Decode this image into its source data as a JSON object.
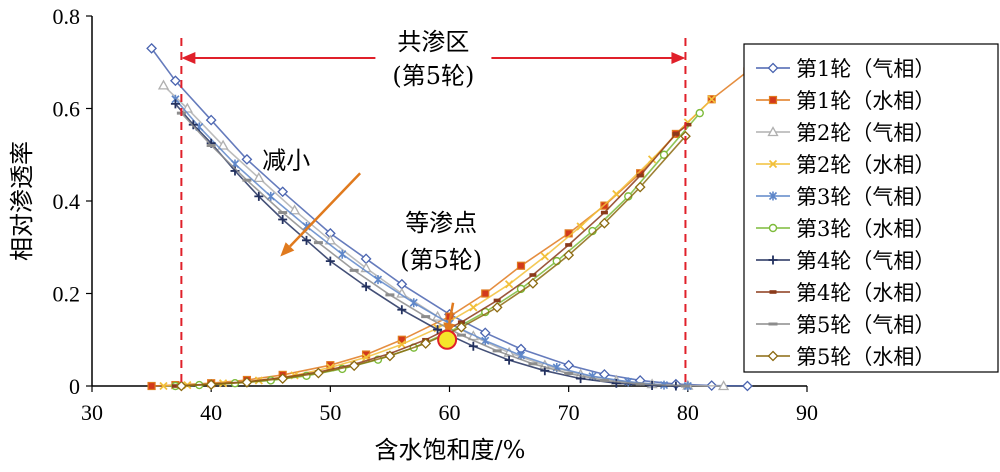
{
  "chart_data": {
    "type": "scatter",
    "xlabel": "含水饱和度/%",
    "ylabel": "相对渗透率",
    "xlim": [
      30,
      90
    ],
    "ylim": [
      0,
      0.8
    ],
    "xticks": [
      "30",
      "40",
      "50",
      "60",
      "70",
      "80",
      "90"
    ],
    "yticks": [
      "0",
      "0.2",
      "0.4",
      "0.6",
      "0.8"
    ],
    "grid": false,
    "legend_position": "right",
    "annotations": {
      "co_seepage_line1": "共渗区",
      "co_seepage_line2": "(第5轮)",
      "decrease": "减小",
      "equal_point_line1": "等渗点",
      "equal_point_line2": "(第5轮)"
    },
    "co_seepage_bounds": [
      37.5,
      79.8
    ],
    "equal_point": {
      "x": 59.8,
      "y": 0.1
    },
    "decrease_arrow": {
      "from": [
        52.5,
        0.46
      ],
      "to": [
        45.8,
        0.28
      ]
    },
    "equal_arrow": {
      "from": [
        60.3,
        0.18
      ],
      "to": [
        59.8,
        0.11
      ]
    },
    "series": [
      {
        "name": "第1轮（气相）",
        "color": "#4a64b0",
        "marker": "diamond",
        "x": [
          35,
          37,
          40,
          43,
          46,
          50,
          53,
          56,
          60,
          63,
          66,
          70,
          73,
          76,
          79,
          82,
          85
        ],
        "y": [
          0.73,
          0.66,
          0.575,
          0.49,
          0.42,
          0.33,
          0.275,
          0.22,
          0.155,
          0.115,
          0.08,
          0.045,
          0.025,
          0.012,
          0.004,
          0.001,
          0.0
        ]
      },
      {
        "name": "第1轮（水相）",
        "color": "#e07a1e",
        "marker": "square",
        "x": [
          35,
          37,
          40,
          43,
          46,
          50,
          53,
          56,
          60,
          63,
          66,
          70,
          73,
          76,
          79,
          82,
          85
        ],
        "y": [
          0.0,
          0.002,
          0.006,
          0.013,
          0.024,
          0.045,
          0.068,
          0.1,
          0.15,
          0.2,
          0.26,
          0.33,
          0.39,
          0.46,
          0.545,
          0.62,
          0.68
        ]
      },
      {
        "name": "第2轮（气相）",
        "color": "#b0b0b0",
        "marker": "triangle",
        "x": [
          36,
          38,
          41,
          44,
          47,
          50,
          53,
          56,
          59,
          62,
          65,
          68,
          71,
          74,
          77,
          80,
          83
        ],
        "y": [
          0.65,
          0.6,
          0.52,
          0.45,
          0.38,
          0.315,
          0.255,
          0.2,
          0.15,
          0.108,
          0.072,
          0.045,
          0.025,
          0.012,
          0.004,
          0.001,
          0.0
        ]
      },
      {
        "name": "第2轮（水相）",
        "color": "#f2c03a",
        "marker": "x",
        "x": [
          36,
          38,
          41,
          44,
          47,
          50,
          53,
          56,
          59,
          62,
          65,
          68,
          71,
          74,
          77,
          80,
          82
        ],
        "y": [
          0.0,
          0.002,
          0.006,
          0.012,
          0.023,
          0.04,
          0.062,
          0.09,
          0.125,
          0.17,
          0.22,
          0.28,
          0.345,
          0.415,
          0.49,
          0.57,
          0.62
        ]
      },
      {
        "name": "第3轮（气相）",
        "color": "#5f87c9",
        "marker": "star",
        "x": [
          37,
          39,
          42,
          45,
          48,
          51,
          54,
          57,
          60,
          63,
          66,
          69,
          72,
          75,
          78,
          80
        ],
        "y": [
          0.62,
          0.56,
          0.48,
          0.41,
          0.345,
          0.285,
          0.23,
          0.18,
          0.135,
          0.098,
          0.066,
          0.04,
          0.021,
          0.009,
          0.002,
          0.0
        ]
      },
      {
        "name": "第3轮（水相）",
        "color": "#7dbb3a",
        "marker": "circle",
        "x": [
          37,
          39,
          42,
          45,
          48,
          51,
          54,
          57,
          60,
          63,
          66,
          69,
          72,
          75,
          78,
          81
        ],
        "y": [
          0.0,
          0.002,
          0.006,
          0.012,
          0.022,
          0.037,
          0.057,
          0.083,
          0.117,
          0.16,
          0.21,
          0.27,
          0.335,
          0.41,
          0.5,
          0.59
        ]
      },
      {
        "name": "第4轮（气相）",
        "color": "#23315f",
        "marker": "plus",
        "x": [
          37,
          38.5,
          40,
          42,
          44,
          46,
          48,
          50,
          53,
          56,
          59,
          62,
          65,
          68,
          71,
          74,
          77,
          79
        ],
        "y": [
          0.61,
          0.565,
          0.525,
          0.465,
          0.41,
          0.36,
          0.315,
          0.27,
          0.215,
          0.165,
          0.122,
          0.086,
          0.056,
          0.033,
          0.016,
          0.006,
          0.001,
          0.0
        ]
      },
      {
        "name": "第4轮（水相）",
        "color": "#8b3a1a",
        "marker": "dash",
        "x": [
          37,
          40,
          43,
          46,
          49,
          52,
          55,
          58,
          61,
          64,
          67,
          70,
          73,
          76,
          79,
          80
        ],
        "y": [
          0.0,
          0.004,
          0.009,
          0.018,
          0.03,
          0.047,
          0.07,
          0.1,
          0.138,
          0.185,
          0.24,
          0.305,
          0.375,
          0.455,
          0.545,
          0.565
        ]
      },
      {
        "name": "第5轮（气相）",
        "color": "#8c8c8c",
        "marker": "hline",
        "x": [
          37.5,
          40,
          43,
          46,
          49,
          52,
          55,
          58,
          61,
          64,
          67,
          70,
          73,
          76,
          79.8
        ],
        "y": [
          0.59,
          0.52,
          0.445,
          0.375,
          0.31,
          0.25,
          0.197,
          0.15,
          0.11,
          0.076,
          0.048,
          0.027,
          0.012,
          0.004,
          0.0
        ]
      },
      {
        "name": "第5轮（水相）",
        "color": "#8c6a10",
        "marker": "diamond",
        "x": [
          37.5,
          40,
          43,
          46,
          49,
          52,
          55,
          58,
          61,
          64,
          67,
          70,
          73,
          76,
          79.8
        ],
        "y": [
          0.0,
          0.003,
          0.008,
          0.016,
          0.028,
          0.044,
          0.065,
          0.092,
          0.127,
          0.17,
          0.222,
          0.283,
          0.352,
          0.43,
          0.54
        ]
      }
    ]
  }
}
